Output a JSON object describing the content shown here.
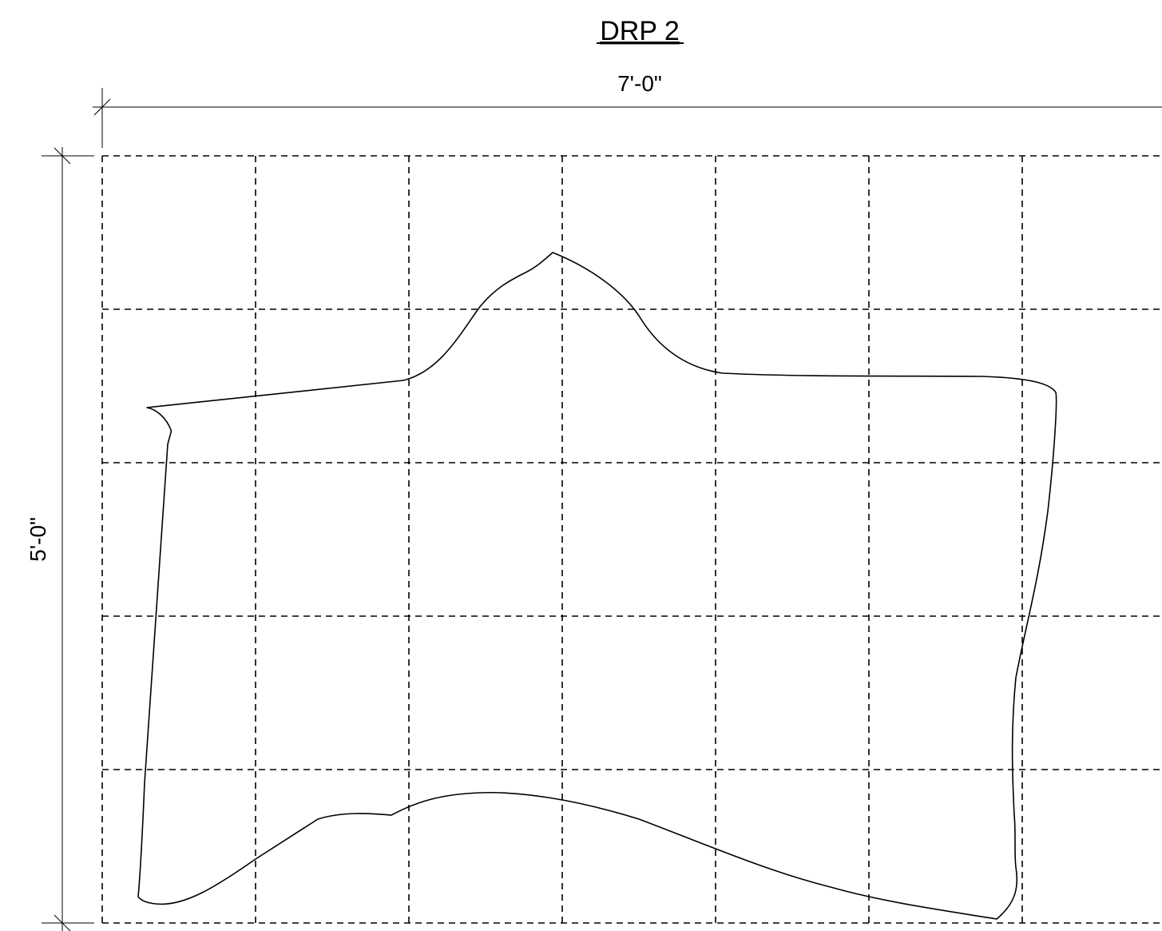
{
  "drawing": {
    "title": "DRP 2",
    "width_dimension": "7'-0\"",
    "height_dimension": "5'-0\""
  }
}
